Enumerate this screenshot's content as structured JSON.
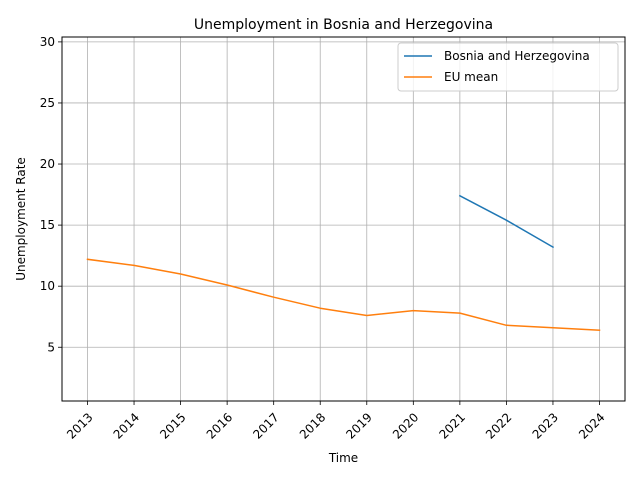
{
  "chart_data": {
    "type": "line",
    "title": "Unemployment in Bosnia and Herzegovina",
    "xlabel": "Time",
    "ylabel": "Unemployment Rate",
    "x": [
      "2013",
      "2014",
      "2015",
      "2016",
      "2017",
      "2018",
      "2019",
      "2020",
      "2021",
      "2022",
      "2023",
      "2024"
    ],
    "ylim": [
      0.6,
      30.4
    ],
    "yticks": [
      5,
      10,
      15,
      20,
      25,
      30
    ],
    "grid": true,
    "legend_position": "upper right",
    "series": [
      {
        "name": "Bosnia and Herzegovina",
        "color": "#1f77b4",
        "values": [
          null,
          null,
          null,
          null,
          null,
          null,
          null,
          null,
          17.4,
          15.4,
          13.2,
          null
        ]
      },
      {
        "name": "EU mean",
        "color": "#ff7f0e",
        "values": [
          12.2,
          11.7,
          11.0,
          10.1,
          9.1,
          8.2,
          7.6,
          8.0,
          7.8,
          6.8,
          6.6,
          6.4
        ]
      }
    ]
  }
}
